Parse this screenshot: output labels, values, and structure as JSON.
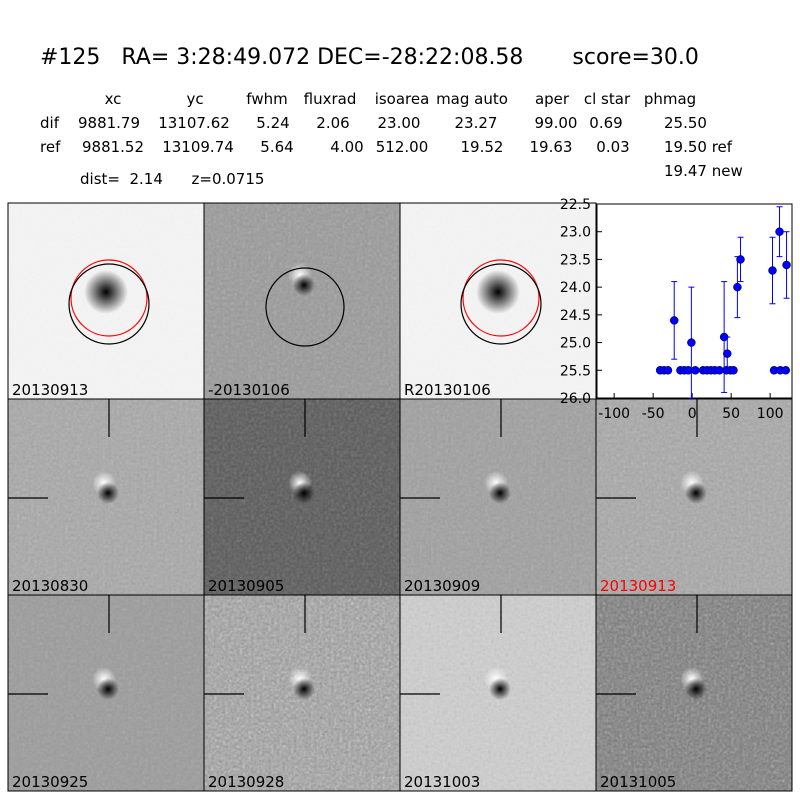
{
  "header": {
    "title": "#125   RA= 3:28:49.072 DEC=-28:22:08.58       score=30.0",
    "columns": [
      "xc",
      "yc",
      "fwhm",
      "fluxrad",
      "isoarea",
      "mag auto",
      "aper",
      "cl star",
      "phmag"
    ],
    "rows": [
      [
        "dif",
        "9881.79",
        "13107.62",
        "5.24",
        "2.06",
        "23.00",
        "23.27",
        "99.00",
        "0.69",
        "25.50"
      ],
      [
        "ref",
        "9881.52",
        "13109.74",
        "5.64",
        "4.00",
        "512.00",
        "19.52",
        "19.63",
        "0.03",
        "19.50 ref"
      ]
    ],
    "extra": "19.47 new",
    "info": "dist=  2.14      z=0.0715"
  },
  "panels": [
    "20130913",
    "-20130106",
    "R20130106",
    null,
    "20130830",
    "20130905",
    "20130909",
    "20130913",
    "20130925",
    "20130928",
    "20131003",
    "20131005"
  ],
  "chart_data": {
    "type": "errorbar",
    "color": "#0000ff",
    "x": [
      -41,
      -36,
      -31,
      -23,
      -15,
      -10,
      -5,
      -1,
      4,
      14,
      19,
      24,
      29,
      35,
      41,
      44,
      45,
      49,
      53,
      58,
      62,
      103,
      105,
      112,
      113,
      120,
      121
    ],
    "values": [
      25.5,
      25.5,
      25.5,
      24.6,
      25.5,
      25.5,
      25.5,
      25.0,
      25.5,
      25.5,
      25.5,
      25.5,
      25.5,
      25.5,
      24.9,
      25.5,
      25.2,
      25.5,
      25.5,
      24.0,
      23.5,
      23.7,
      25.5,
      23.0,
      25.5,
      25.5,
      23.6
    ],
    "errors": [
      0.05,
      0.05,
      0.05,
      0.7,
      0.05,
      0.05,
      0.05,
      1.0,
      0.05,
      0.05,
      0.05,
      0.05,
      0.05,
      0.05,
      1.0,
      0.05,
      0.3,
      0.05,
      0.05,
      0.55,
      0.4,
      0.6,
      0.05,
      0.45,
      0.05,
      0.05,
      0.6
    ],
    "xlim": [
      -122,
      128
    ],
    "xticks": [
      -100,
      -50,
      0,
      50,
      100
    ],
    "ylim": [
      26,
      22.5
    ],
    "yticks": [
      {
        "value": 26,
        "label": "26.0"
      },
      25.5,
      {
        "value": 25,
        "label": "25.0"
      },
      24.5,
      {
        "value": 24,
        "label": "24.0"
      },
      23.5,
      {
        "value": 23,
        "label": "23.0"
      },
      22.5
    ]
  }
}
